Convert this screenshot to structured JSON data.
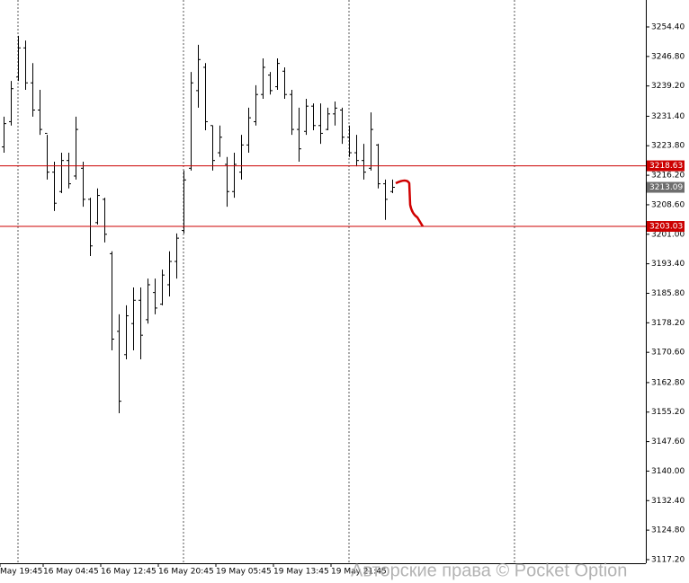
{
  "chart_data": {
    "type": "ohlc",
    "color": "#000000",
    "categories": [
      "May 19:45",
      null,
      null,
      null,
      null,
      null,
      "16 May 04:45",
      null,
      null,
      null,
      null,
      null,
      null,
      null,
      "16 May 12:45",
      null,
      null,
      null,
      null,
      null,
      null,
      null,
      "16 May 20:45",
      null,
      null,
      null,
      null,
      null,
      null,
      null,
      "19 May 05:45",
      null,
      null,
      null,
      null,
      null,
      null,
      null,
      "19 May 13:45",
      null,
      null,
      null,
      null,
      null,
      null,
      null,
      "19 May 21:45",
      null,
      null,
      null,
      null,
      null,
      null,
      null,
      null
    ],
    "open": [
      3223.5,
      3230.0,
      3241.5,
      3249.0,
      3240.0,
      3233.0,
      3227.0,
      3217.0,
      3212.0,
      3220.0,
      3216.0,
      3218.0,
      3210.0,
      3204.0,
      3210.0,
      3196.0,
      3176.0,
      3170.0,
      3178.0,
      3184.0,
      3179.0,
      3186.0,
      3183.0,
      3188.0,
      3194.0,
      3202.0,
      3218.0,
      3238.0,
      3244.0,
      3229.0,
      3222.0,
      3219.0,
      3212.0,
      3217.0,
      3224.0,
      3230.0,
      3237.0,
      3242.0,
      3239.0,
      3243.0,
      3237.0,
      3228.0,
      3227.5,
      3234.0,
      3229.0,
      3228.0,
      3232.0,
      3233.0,
      3226.0,
      3222.0,
      3220.0,
      3218.0,
      3224.0,
      3214.0,
      3212.0
    ],
    "high": [
      3231.3,
      3240.5,
      3252.1,
      3250.9,
      3245.1,
      3238.2,
      3226.6,
      3219.7,
      3222.0,
      3222.0,
      3231.3,
      3219.7,
      3210.4,
      3212.8,
      3210.4,
      3196.6,
      3180.4,
      3182.7,
      3187.3,
      3187.3,
      3189.6,
      3189.6,
      3191.9,
      3196.6,
      3201.2,
      3217.4,
      3242.8,
      3249.8,
      3245.1,
      3229.0,
      3229.0,
      3220.9,
      3222.0,
      3226.6,
      3233.6,
      3239.4,
      3246.3,
      3242.8,
      3246.3,
      3244.0,
      3238.2,
      3233.6,
      3235.9,
      3234.7,
      3234.7,
      3233.6,
      3235.2,
      3233.6,
      3229.0,
      3226.6,
      3224.3,
      3232.4,
      3224.3,
      3215.1,
      3215.1
    ],
    "low": [
      3222.0,
      3229.0,
      3240.5,
      3238.2,
      3231.3,
      3226.6,
      3215.1,
      3207.0,
      3211.6,
      3212.8,
      3215.1,
      3208.1,
      3195.4,
      3203.5,
      3198.9,
      3171.1,
      3154.9,
      3168.8,
      3171.1,
      3168.8,
      3178.0,
      3180.4,
      3182.7,
      3185.0,
      3189.6,
      3201.2,
      3217.4,
      3233.6,
      3227.8,
      3217.4,
      3220.9,
      3208.1,
      3210.4,
      3215.1,
      3222.0,
      3229.0,
      3235.9,
      3237.0,
      3238.2,
      3235.9,
      3226.6,
      3219.7,
      3226.6,
      3227.8,
      3224.3,
      3227.8,
      3229.0,
      3224.3,
      3220.9,
      3218.5,
      3215.1,
      3217.4,
      3212.8,
      3204.7,
      3211.6
    ],
    "close": [
      3229.5,
      3238.5,
      3249.0,
      3240.0,
      3233.0,
      3228.0,
      3217.0,
      3209.0,
      3220.0,
      3214.0,
      3228.0,
      3210.0,
      3198.0,
      3211.0,
      3201.0,
      3174.0,
      3158.0,
      3180.0,
      3184.0,
      3175.0,
      3188.0,
      3182.0,
      3190.5,
      3194.0,
      3200.0,
      3215.0,
      3240.0,
      3246.0,
      3230.0,
      3220.0,
      3226.0,
      3212.0,
      3219.0,
      3224.0,
      3231.0,
      3237.0,
      3244.0,
      3238.0,
      3245.0,
      3237.0,
      3228.0,
      3223.0,
      3234.0,
      3229.0,
      3227.0,
      3232.0,
      3233.5,
      3226.0,
      3222.0,
      3220.0,
      3217.0,
      3228.0,
      3214.0,
      3210.0,
      3213.1
    ],
    "ylim": [
      3116.27,
      3261.34
    ],
    "yticks": [
      {
        "value": 3254.4,
        "label": "3254.40"
      },
      {
        "value": 3246.8,
        "label": "3246.80"
      },
      {
        "value": 3239.2,
        "label": "3239.20"
      },
      {
        "value": 3231.4,
        "label": "3231.40"
      },
      {
        "value": 3223.8,
        "label": "3223.80"
      },
      {
        "value": 3216.2,
        "label": "3216.20"
      },
      {
        "value": 3208.6,
        "label": "3208.60"
      },
      {
        "value": 3201.0,
        "label": "3201.00"
      },
      {
        "value": 3193.4,
        "label": "3193.40"
      },
      {
        "value": 3185.8,
        "label": "3185.80"
      },
      {
        "value": 3178.2,
        "label": "3178.20"
      },
      {
        "value": 3170.6,
        "label": "3170.60"
      },
      {
        "value": 3162.8,
        "label": "3162.80"
      },
      {
        "value": 3155.2,
        "label": "3155.20"
      },
      {
        "value": 3147.6,
        "label": "3147.60"
      },
      {
        "value": 3140.0,
        "label": "3140.00"
      },
      {
        "value": 3132.4,
        "label": "3132.40"
      },
      {
        "value": 3124.8,
        "label": "3124.80"
      },
      {
        "value": 3117.2,
        "label": "3117.20"
      }
    ],
    "levels": [
      {
        "value": 3218.63,
        "label": "3218.63"
      },
      {
        "value": 3203.03,
        "label": "3203.03"
      }
    ],
    "level_color": "#cc0000",
    "last_price": {
      "value": 3213.09,
      "label": "3213.09"
    },
    "last_price_color": "#6e6e6e",
    "watermark": "Авторские права © Pocket Option"
  }
}
